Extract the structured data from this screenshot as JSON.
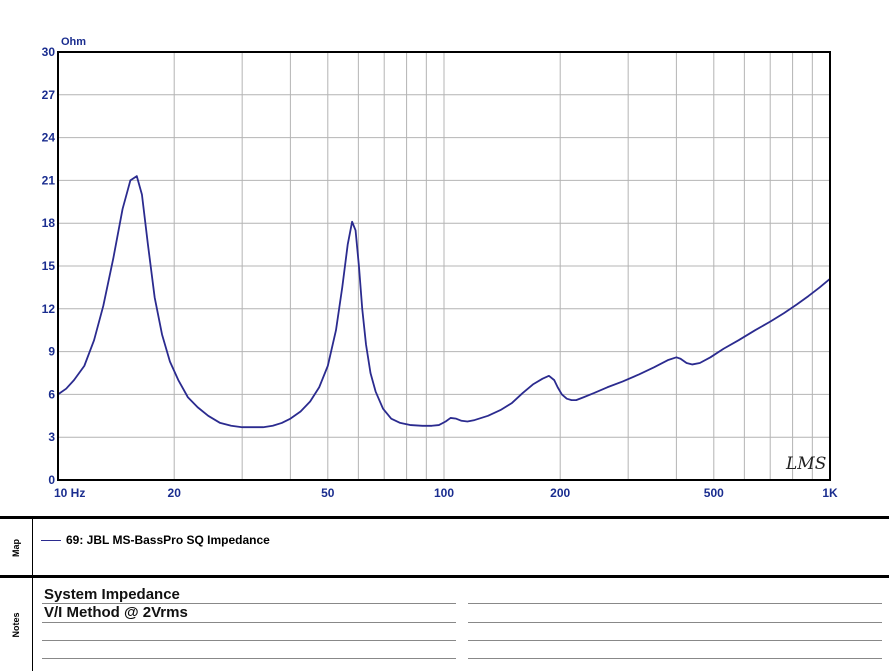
{
  "chart_data": {
    "type": "line",
    "y_unit_label": "Ohm",
    "x_scale": "log",
    "xlim": [
      10,
      1000
    ],
    "ylim": [
      0,
      30
    ],
    "y_ticks": [
      0,
      3,
      6,
      9,
      12,
      15,
      18,
      21,
      24,
      27,
      30
    ],
    "x_tick_labels": [
      {
        "value": 10,
        "label": "10 Hz"
      },
      {
        "value": 20,
        "label": "20"
      },
      {
        "value": 50,
        "label": "50"
      },
      {
        "value": 100,
        "label": "100"
      },
      {
        "value": 200,
        "label": "200"
      },
      {
        "value": 500,
        "label": "500"
      },
      {
        "value": 1000,
        "label": "1K"
      }
    ],
    "grid": true,
    "series": [
      {
        "name": "69: JBL MS-BassPro SQ Impedance",
        "color": "#2b2b8f",
        "x": [
          10,
          10.5,
          11,
          11.7,
          12.4,
          13.1,
          13.9,
          14.7,
          15.4,
          16.0,
          16.5,
          17.1,
          17.8,
          18.6,
          19.5,
          20.5,
          21.7,
          23,
          24.5,
          26.3,
          28.1,
          30,
          32,
          34,
          36,
          38,
          40,
          42.5,
          45,
          47.5,
          50,
          52.5,
          54.5,
          56.3,
          57.8,
          59,
          60.2,
          61.4,
          62.8,
          64.5,
          66.5,
          69.5,
          73,
          77,
          82,
          88,
          93,
          97,
          101,
          104,
          107.5,
          111,
          115,
          120,
          130,
          140,
          150,
          160,
          170,
          180,
          187,
          193,
          197,
          202,
          208,
          214,
          220,
          230,
          245,
          265,
          290,
          320,
          350,
          380,
          400,
          410,
          425,
          440,
          460,
          490,
          530,
          580,
          640,
          700,
          760,
          820,
          880,
          940,
          1000
        ],
        "y": [
          6.0,
          6.4,
          7.0,
          8.0,
          9.8,
          12.2,
          15.5,
          19.0,
          21.0,
          21.3,
          20.0,
          16.5,
          12.8,
          10.2,
          8.3,
          7.0,
          5.8,
          5.1,
          4.5,
          4.0,
          3.8,
          3.7,
          3.7,
          3.7,
          3.8,
          4.0,
          4.3,
          4.8,
          5.5,
          6.5,
          8.0,
          10.5,
          13.5,
          16.5,
          18.1,
          17.5,
          15.0,
          12.0,
          9.5,
          7.5,
          6.2,
          5.0,
          4.3,
          4.0,
          3.85,
          3.8,
          3.8,
          3.85,
          4.1,
          4.35,
          4.3,
          4.15,
          4.1,
          4.2,
          4.5,
          4.9,
          5.4,
          6.1,
          6.7,
          7.1,
          7.3,
          7.0,
          6.5,
          6.0,
          5.7,
          5.6,
          5.6,
          5.8,
          6.1,
          6.5,
          6.9,
          7.4,
          7.9,
          8.4,
          8.6,
          8.5,
          8.2,
          8.1,
          8.2,
          8.6,
          9.2,
          9.8,
          10.5,
          11.1,
          11.7,
          12.3,
          12.9,
          13.5,
          14.1
        ]
      }
    ]
  },
  "signature": "LMS",
  "map_panel": {
    "side_label": "Map",
    "legend_text": "69: JBL MS-BassPro SQ Impedance",
    "legend_color": "#2b2b8f"
  },
  "notes_panel": {
    "side_label": "Notes",
    "lines": [
      "System Impedance",
      "V/I Method @ 2Vrms"
    ]
  }
}
